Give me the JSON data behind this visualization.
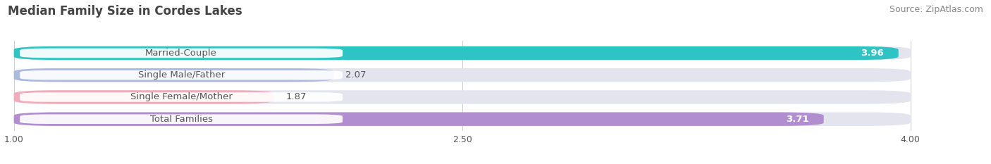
{
  "title": "Median Family Size in Cordes Lakes",
  "source": "Source: ZipAtlas.com",
  "categories": [
    "Married-Couple",
    "Single Male/Father",
    "Single Female/Mother",
    "Total Families"
  ],
  "values": [
    3.96,
    2.07,
    1.87,
    3.71
  ],
  "bar_colors": [
    "#2ec4c4",
    "#aabbdd",
    "#f4aabb",
    "#b08ecf"
  ],
  "bar_bg_color": "#e4e4ee",
  "xmin": 1.0,
  "xmax": 4.0,
  "xticks": [
    1.0,
    2.5,
    4.0
  ],
  "bar_height": 0.62,
  "fig_bg_color": "#ffffff",
  "label_color": "#555555",
  "title_color": "#444444",
  "source_color": "#888888",
  "title_fontsize": 12,
  "label_fontsize": 9.5,
  "value_fontsize": 9.5,
  "tick_fontsize": 9,
  "source_fontsize": 9
}
